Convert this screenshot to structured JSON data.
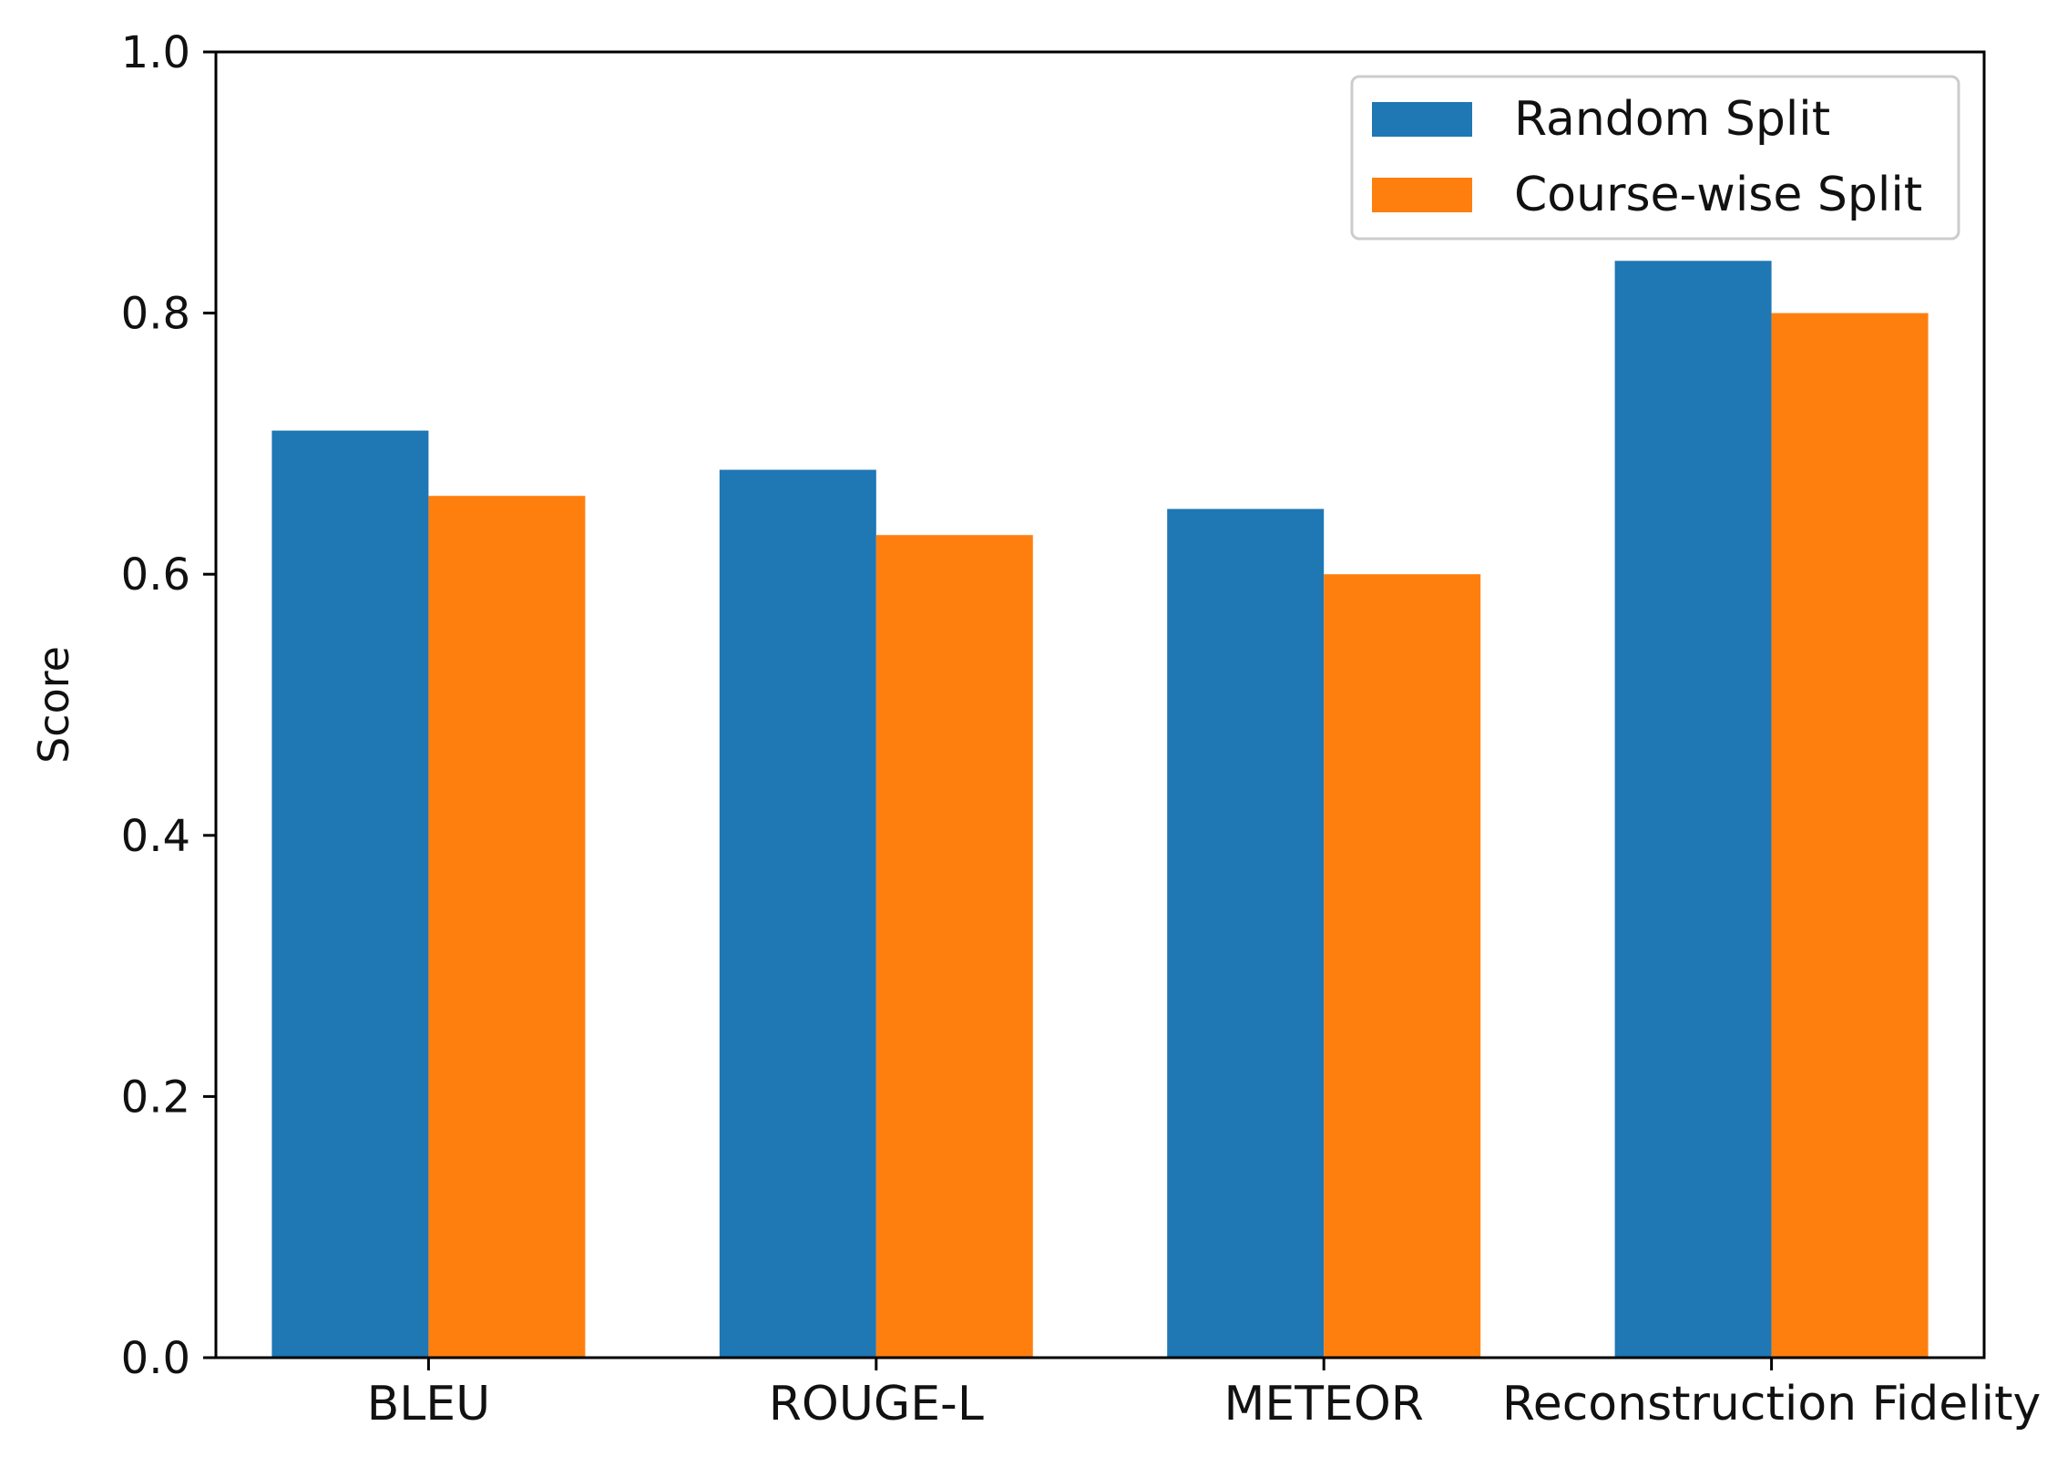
{
  "chart_data": {
    "type": "bar",
    "title": "",
    "xlabel": "",
    "ylabel": "Score",
    "ylim": [
      0,
      1.0
    ],
    "yticks": [
      "0.0",
      "0.2",
      "0.4",
      "0.6",
      "0.8",
      "1.0"
    ],
    "categories": [
      "BLEU",
      "ROUGE-L",
      "METEOR",
      "Reconstruction Fidelity"
    ],
    "series": [
      {
        "name": "Random Split",
        "color": "#1f77b4",
        "values": [
          0.71,
          0.68,
          0.65,
          0.84
        ]
      },
      {
        "name": "Course-wise Split",
        "color": "#ff7f0e",
        "values": [
          0.66,
          0.63,
          0.6,
          0.8
        ]
      }
    ],
    "grid": false,
    "legend_position": "top-right"
  }
}
